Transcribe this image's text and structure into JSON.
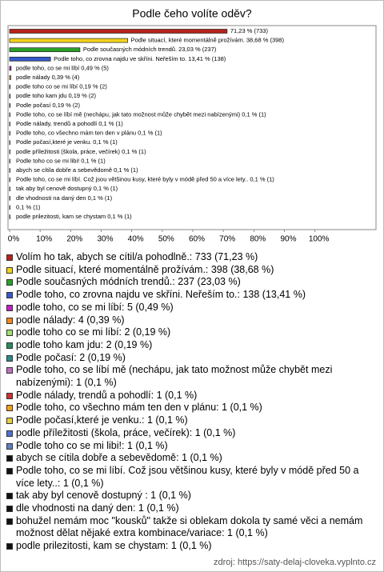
{
  "chart_data": {
    "type": "bar",
    "orientation": "horizontal",
    "title": "Podle čeho volíte oděv?",
    "categories": [
      "Volím ho tak, abych se cítil/a pohodlně.: 733 (71,23 %)",
      "Podle situací, které momentálně prožívám.: 398 (38,68 %)",
      "Podle současných módních trendů.: 237 (23,03 %)",
      "Podle toho, co zrovna najdu ve skříni. Neřeším to.: 138 (13,41 %)",
      "podle toho, co se mi líbí: 5 (0,49 %)",
      "podle nálady: 4 (0,39 %)",
      "podle toho co se mi líbí: 2 (0,19 %)",
      "podle toho kam jdu: 2 (0,19 %)",
      "Podle počasí: 2 (0,19 %)",
      "Podle toho, co se líbí mě (nechápu, jak tato možnost může chybět mezi nabízenými): 1 (0,1 %)",
      "Podle nálady, trendů a pohodlí: 1 (0,1 %)",
      "Podle toho, co všechno mám ten den v plánu: 1 (0,1 %)",
      "Podle počasí,které je venku.: 1 (0,1 %)",
      "podle příležitosti (škola, práce, večírek): 1 (0,1 %)",
      "Podle toho co se mi libi!: 1 (0,1 %)",
      "abych se cítila dobře a sebevědomě: 1 (0,1 %)",
      "Podle toho, co se mi líbí. Což jsou většinou kusy, které byly v módě před 50 a více lety..: 1 (0,1 %)",
      "tak aby byl cenově dostupný : 1 (0,1 %)",
      "dle vhodnosti na daný den: 1 (0,1 %)",
      "bohužel nemám moc \"kousků\" takže si oblekam dokola ty samé věci a nemám možnost dělat nějaké extra kombinace/variace: 1 (0,1 %)",
      "podle prilezitosti, kam se chystam: 1 (0,1 %)"
    ],
    "values": [
      71.23,
      38.68,
      23.03,
      13.41,
      0.49,
      0.39,
      0.19,
      0.19,
      0.19,
      0.1,
      0.1,
      0.1,
      0.1,
      0.1,
      0.1,
      0.1,
      0.1,
      0.1,
      0.1,
      0.1,
      0.1
    ],
    "value_labels": [
      "71,23 % (733)",
      "Podle situací, které momentálně prožívám. 38,68 % (398)",
      "Podle současných módních trendů. 23,03 % (237)",
      "Podle toho, co zrovna najdu ve skříni. Neřeším to. 13,41 % (138)",
      "podle toho, co se mi líbí 0,49 % (5)",
      "podle nálady 0,39 % (4)",
      "podle toho co se mi líbí 0,19 % (2)",
      "podle toho kam jdu 0,19 % (2)",
      "Podle počasí 0,19 % (2)",
      "Podle toho, co se líbí mě (nechápu, jak tato možnost může chybět mezi nabízenými) 0,1 % (1)",
      "Podle nálady, trendů a pohodlí 0,1 % (1)",
      "Podle toho, co všechno mám ten den v plánu 0,1 % (1)",
      "Podle počasí,které je venku. 0,1 % (1)",
      "podle příležitosti (škola, práce, večírek) 0,1 % (1)",
      "Podle toho co se mi libi! 0,1 % (1)",
      "abych se cítila dobře a sebevědomě 0,1 % (1)",
      "Podle toho, co se mi líbí. Což jsou většinou kusy, které byly v módě před 50 a více lety.. 0,1 % (1)",
      "tak aby byl cenově dostupný  0,1 % (1)",
      "dle vhodnosti na daný den 0,1 % (1)",
      "0,1 % (1)",
      "podle prilezitosti, kam se chystam 0,1 % (1)"
    ],
    "colors": [
      "#b8231b",
      "#f2d21c",
      "#2aa02a",
      "#3559c9",
      "#c020c0",
      "#f08a1a",
      "#a0e070",
      "#2a8a5a",
      "#2a8a8a",
      "#c070c0",
      "#d03030",
      "#f0a020",
      "#e8d040",
      "#5070d0",
      "#6080c0",
      "#111111",
      "#111111",
      "#111111",
      "#111111",
      "#111111",
      "#111111"
    ],
    "xlim": [
      0,
      120
    ],
    "xticks": [
      {
        "value": 0,
        "label": "0%"
      },
      {
        "value": 10,
        "label": "10%"
      },
      {
        "value": 20,
        "label": "20%"
      },
      {
        "value": 30,
        "label": "30%"
      },
      {
        "value": 40,
        "label": "40%"
      },
      {
        "value": 50,
        "label": "50%"
      },
      {
        "value": 60,
        "label": "60%"
      },
      {
        "value": 70,
        "label": "70%"
      },
      {
        "value": 80,
        "label": "80%"
      },
      {
        "value": 90,
        "label": "90%"
      },
      {
        "value": 100,
        "label": "100%"
      }
    ],
    "source": "zdroj: https://saty-delaj-cloveka.vyplnto.cz"
  }
}
